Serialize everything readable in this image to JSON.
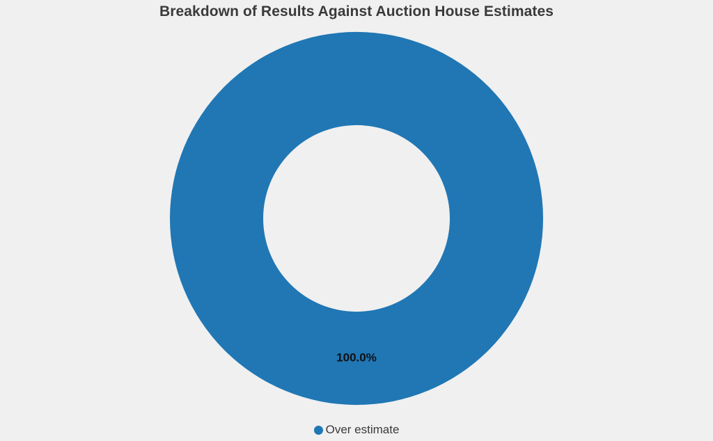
{
  "chart_data": {
    "type": "pie",
    "title": "Breakdown of Results Against Auction House Estimates",
    "donut": true,
    "slices": [
      {
        "label": "Over estimate",
        "value": 100.0,
        "percent_label": "100.0%",
        "color": "#2077b4"
      }
    ],
    "legend": {
      "placement": "bottom",
      "entries": [
        "Over estimate"
      ]
    }
  },
  "colors": {
    "background": "#f0f0f0",
    "title": "#3a3a3a"
  }
}
